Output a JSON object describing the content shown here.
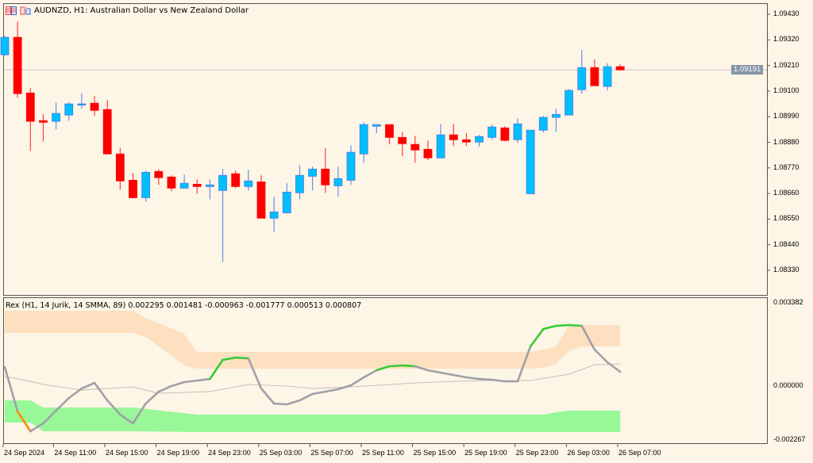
{
  "header": {
    "symbol_title": "AUDNZD, H1:  Australian Dollar vs New Zealand Dollar",
    "icons": [
      "chart-grid-icon",
      "templates-icon"
    ]
  },
  "colors": {
    "background": "#fdf5e6",
    "bull": "#00bfff",
    "bull_border": "#4a78e0",
    "bear": "#ff0000",
    "upper_band": "#fde0c0",
    "lower_band": "#98f898",
    "line_neutral": "#a0a0a8",
    "line_up": "#33cc33",
    "line_down": "#ff8c00",
    "smma": "#c8c0b8"
  },
  "price_axis": {
    "ticks": [
      "1.09430",
      "1.09320",
      "1.09210",
      "1.09100",
      "1.08990",
      "1.08880",
      "1.08770",
      "1.08660",
      "1.08550",
      "1.08440",
      "1.08330"
    ],
    "range": [
      1.0833,
      1.0943
    ],
    "current_price": "1.09191"
  },
  "indicator": {
    "title": "Rex (H1, 14 Jurik, 14 SMMA, 89) 0.002295 0.001481 -0.000963 -0.001777 0.000513 0.000807",
    "axis_ticks": [
      "0.003382",
      "0.000000",
      "-0.002267"
    ],
    "range": [
      -0.002267,
      0.003382
    ]
  },
  "time_axis": {
    "labels": [
      "24 Sep 2024",
      "24 Sep 11:00",
      "24 Sep 15:00",
      "24 Sep 19:00",
      "24 Sep 23:00",
      "25 Sep 03:00",
      "25 Sep 07:00",
      "25 Sep 11:00",
      "25 Sep 15:00",
      "25 Sep 19:00",
      "25 Sep 23:00",
      "26 Sep 03:00",
      "26 Sep 07:00"
    ]
  },
  "chart_data": [
    {
      "type": "candlestick",
      "title": "AUDNZD, H1",
      "ylim": [
        1.0833,
        1.0943
      ],
      "ohlc": [
        [
          1.09256,
          1.09338,
          1.09253,
          1.09331
        ],
        [
          1.09331,
          1.09399,
          1.09072,
          1.09089
        ],
        [
          1.09092,
          1.09113,
          1.08843,
          1.0897
        ],
        [
          1.08973,
          1.09,
          1.08884,
          1.08966
        ],
        [
          1.0897,
          1.09051,
          1.08936,
          1.09004
        ],
        [
          1.08997,
          1.09051,
          1.08973,
          1.09045
        ],
        [
          1.09041,
          1.09089,
          1.09024,
          1.09045
        ],
        [
          1.09048,
          1.09079,
          1.08994,
          1.09017
        ],
        [
          1.09021,
          1.09062,
          1.0883,
          1.0883
        ],
        [
          1.0883,
          1.08857,
          1.08676,
          1.08714
        ],
        [
          1.08717,
          1.08748,
          1.08639,
          1.08642
        ],
        [
          1.08642,
          1.08758,
          1.08625,
          1.08751
        ],
        [
          1.08755,
          1.08765,
          1.08697,
          1.08728
        ],
        [
          1.08731,
          1.08738,
          1.0867,
          1.08683
        ],
        [
          1.08683,
          1.08741,
          1.08683,
          1.08704
        ],
        [
          1.087,
          1.08721,
          1.08659,
          1.0869
        ],
        [
          1.0869,
          1.08721,
          1.08635,
          1.08697
        ],
        [
          1.08673,
          1.08765,
          1.08366,
          1.08738
        ],
        [
          1.08745,
          1.08758,
          1.08683,
          1.0869
        ],
        [
          1.0869,
          1.08762,
          1.08673,
          1.08714
        ],
        [
          1.0871,
          1.08738,
          1.08554,
          1.08554
        ],
        [
          1.08554,
          1.08646,
          1.08496,
          1.08581
        ],
        [
          1.08577,
          1.08704,
          1.08574,
          1.08666
        ],
        [
          1.08663,
          1.08782,
          1.08635,
          1.08738
        ],
        [
          1.08734,
          1.08775,
          1.08673,
          1.08765
        ],
        [
          1.08765,
          1.08854,
          1.08663,
          1.08697
        ],
        [
          1.08693,
          1.08775,
          1.08646,
          1.08724
        ],
        [
          1.08717,
          1.08867,
          1.08697,
          1.08837
        ],
        [
          1.0883,
          1.08966,
          1.08792,
          1.08956
        ],
        [
          1.08949,
          1.08956,
          1.08919,
          1.08956
        ],
        [
          1.08956,
          1.08956,
          1.08871,
          1.08901
        ],
        [
          1.08901,
          1.08925,
          1.0882,
          1.08874
        ],
        [
          1.08871,
          1.08908,
          1.08792,
          1.08847
        ],
        [
          1.0885,
          1.08888,
          1.08803,
          1.08813
        ],
        [
          1.08813,
          1.08959,
          1.08813,
          1.08912
        ],
        [
          1.08912,
          1.08959,
          1.08864,
          1.08891
        ],
        [
          1.08891,
          1.08919,
          1.08864,
          1.08881
        ],
        [
          1.08881,
          1.08912,
          1.08861,
          1.08905
        ],
        [
          1.08901,
          1.08956,
          1.08891,
          1.08946
        ],
        [
          1.08942,
          1.08949,
          1.08884,
          1.08888
        ],
        [
          1.08891,
          1.08983,
          1.08878,
          1.08959
        ],
        [
          1.08659,
          1.08932,
          1.08659,
          1.08932
        ],
        [
          1.08932,
          1.08994,
          1.08922,
          1.08987
        ],
        [
          1.08987,
          1.09024,
          1.08925,
          1.09
        ],
        [
          1.08997,
          1.09109,
          1.08997,
          1.09103
        ],
        [
          1.09106,
          1.09277,
          1.09089,
          1.09201
        ],
        [
          1.09201,
          1.09236,
          1.09123,
          1.09123
        ],
        [
          1.0912,
          1.09219,
          1.09103,
          1.09205
        ],
        [
          1.09205,
          1.09215,
          1.09188,
          1.09191
        ]
      ]
    },
    {
      "type": "line",
      "title": "Rex (H1, 14 Jurik, 14 SMMA, 89)",
      "ylim": [
        -0.002267,
        0.003382
      ],
      "main_line": [
        0.000695,
        -0.000997,
        -0.001752,
        -0.00145,
        -0.000966,
        -0.000483,
        -0.000121,
        9.1e-05,
        -0.000574,
        -0.001117,
        -0.00145,
        -0.000695,
        -0.000242,
        -3e-05,
        0.000121,
        0.000181,
        0.000242,
        0.000966,
        0.001057,
        0.001027,
        -0.000121,
        -0.000695,
        -0.000725,
        -0.000574,
        -0.000332,
        -0.000242,
        -0.000151,
        0,
        0.000302,
        0.000574,
        0.000725,
        0.000755,
        0.000725,
        0.000574,
        0.000483,
        0.000393,
        0.000302,
        0.000242,
        0.000211,
        0.000151,
        0.000151,
        0.00148,
        0.002144,
        0.002265,
        0.002295,
        0.002265,
        0.001359,
        0.000876,
        0.000513
      ],
      "main_line_state": {
        "down": [
          2
        ],
        "up": [
          17,
          18,
          19,
          30,
          31,
          32,
          42,
          43,
          44,
          45
        ]
      },
      "smma_breakpoints": [
        [
          0,
          0.000332
        ],
        [
          2,
          0.000151
        ],
        [
          3,
          3e-05
        ],
        [
          6,
          -0.000181
        ],
        [
          10,
          -6e-05
        ],
        [
          12,
          -0.000302
        ],
        [
          16,
          -0.000242
        ],
        [
          19,
          3e-05
        ],
        [
          22,
          -3e-05
        ],
        [
          24,
          -0.000121
        ],
        [
          27,
          -6e-05
        ],
        [
          32,
          9.1e-05
        ],
        [
          37,
          0.000181
        ],
        [
          41,
          0.000181
        ],
        [
          44,
          0.000423
        ],
        [
          46,
          0.000785
        ],
        [
          48,
          0.000807
        ]
      ],
      "upper_band": [
        [
          0,
          0.002839,
          0.001993
        ],
        [
          10,
          0.002839,
          0.001993
        ],
        [
          11,
          0.002567,
          0.001842
        ],
        [
          14,
          0.001963,
          0.000755
        ],
        [
          15,
          0.001268,
          0.000634
        ],
        [
          41,
          0.001268,
          0.000634
        ],
        [
          42,
          0.001359,
          0.000664
        ],
        [
          43,
          0.00148,
          0.000815
        ],
        [
          44,
          0.002265,
          0.001299
        ],
        [
          45,
          0.002295,
          0.001481
        ],
        [
          48,
          0.002295,
          0.001481
        ]
      ],
      "lower_band": [
        [
          0,
          -0.000574,
          -0.001419
        ],
        [
          2,
          -0.000574,
          -0.001419
        ],
        [
          3,
          -0.000846,
          -0.001752
        ],
        [
          10,
          -0.000846,
          -0.001752
        ],
        [
          15,
          -0.001117,
          -0.001782
        ],
        [
          42,
          -0.001117,
          -0.001782
        ],
        [
          43,
          -0.001027,
          -0.001777
        ],
        [
          44,
          -0.000963,
          -0.001777
        ],
        [
          48,
          -0.000963,
          -0.001777
        ]
      ]
    }
  ]
}
